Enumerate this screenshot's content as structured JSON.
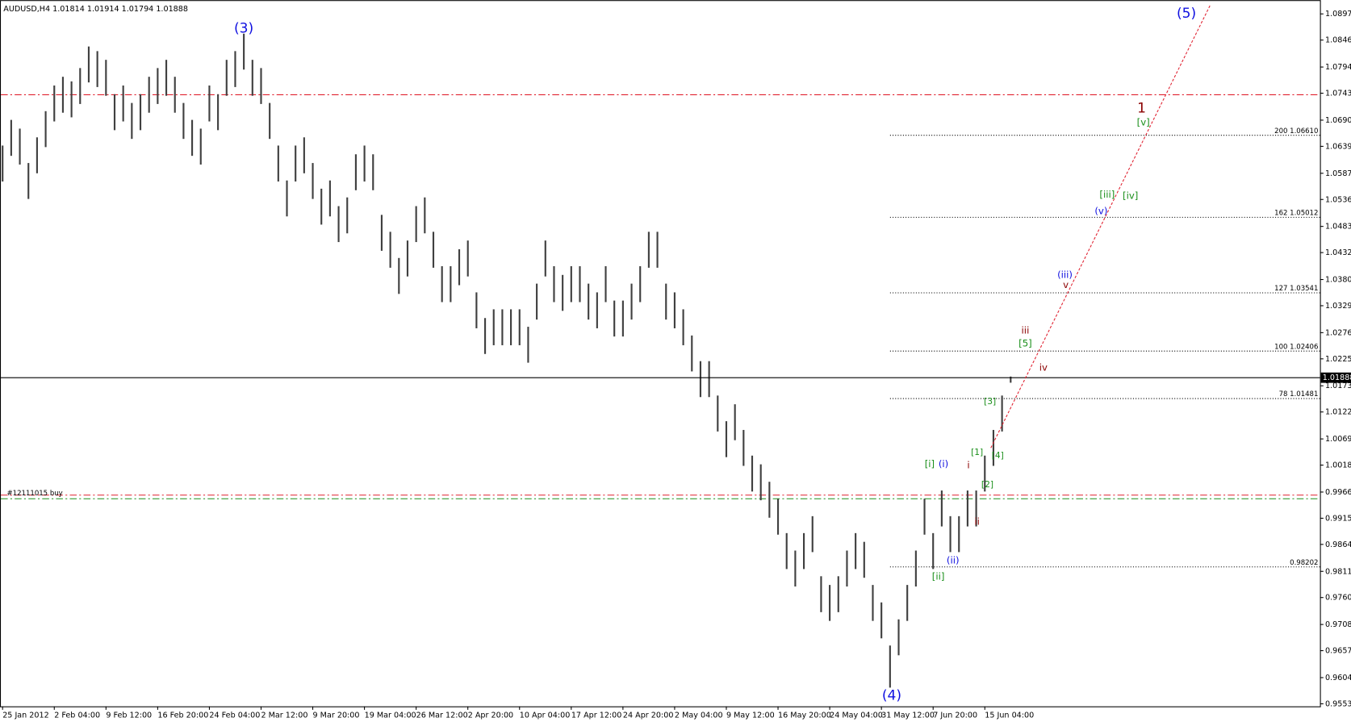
{
  "chart_data": {
    "type": "ohlc",
    "title": "AUDUSD,H4  1.01814 1.01914 1.01794 1.01888",
    "categories": [
      "25 Jan 2012",
      null,
      null,
      null,
      null,
      null,
      "2 Feb 04:00",
      null,
      null,
      null,
      null,
      null,
      "9 Feb 12:00",
      null,
      null,
      null,
      null,
      null,
      "16 Feb 20:00",
      null,
      null,
      null,
      null,
      null,
      "24 Feb 04:00",
      null,
      null,
      null,
      null,
      null,
      "2 Mar 12:00",
      null,
      null,
      null,
      null,
      null,
      "9 Mar 20:00",
      null,
      null,
      null,
      null,
      null,
      "19 Mar 04:00",
      null,
      null,
      null,
      null,
      null,
      "26 Mar 12:00",
      null,
      null,
      null,
      null,
      null,
      "2 Apr 20:00",
      null,
      null,
      null,
      null,
      null,
      "10 Apr 04:00",
      null,
      null,
      null,
      null,
      null,
      "17 Apr 12:00",
      null,
      null,
      null,
      null,
      null,
      "24 Apr 20:00",
      null,
      null,
      null,
      null,
      null,
      "2 May 04:00",
      null,
      null,
      null,
      null,
      null,
      "9 May 12:00",
      null,
      null,
      null,
      null,
      null,
      "16 May 20:00",
      null,
      null,
      null,
      null,
      null,
      "24 May 04:00",
      null,
      null,
      null,
      null,
      null,
      "31 May 12:00",
      null,
      null,
      null,
      null,
      null,
      "7 Jun 20:00",
      null,
      null,
      null,
      null,
      null,
      "15 Jun 04:00",
      null,
      null,
      null
    ],
    "high": [
      1.0641,
      1.0691,
      1.0674,
      1.0607,
      1.0657,
      1.0708,
      1.0758,
      1.0775,
      1.0766,
      1.0792,
      1.0834,
      1.0825,
      1.0808,
      1.0741,
      1.0758,
      1.0724,
      1.0741,
      1.0775,
      1.0792,
      1.0808,
      1.0775,
      1.0724,
      1.0691,
      1.0674,
      1.0758,
      1.0741,
      1.0808,
      1.0825,
      1.0859,
      1.0808,
      1.0792,
      1.0724,
      1.0641,
      1.0573,
      1.0641,
      1.0657,
      1.0607,
      1.0557,
      1.0573,
      1.0523,
      1.054,
      1.0624,
      1.0641,
      1.0624,
      1.0506,
      1.0473,
      1.0422,
      1.0456,
      1.0523,
      1.054,
      1.0473,
      1.0406,
      1.0406,
      1.0439,
      1.0456,
      1.0355,
      1.0305,
      1.0322,
      1.0322,
      1.0322,
      1.0322,
      1.0288,
      1.0372,
      1.0456,
      1.0406,
      1.0389,
      1.0406,
      1.0406,
      1.0372,
      1.0355,
      1.0406,
      1.0339,
      1.0339,
      1.0372,
      1.0406,
      1.0473,
      1.0473,
      1.0372,
      1.0355,
      1.0322,
      1.0271,
      1.0221,
      1.0221,
      1.0154,
      1.0104,
      1.0137,
      1.0087,
      1.0037,
      1.002,
      0.9986,
      0.9953,
      0.9886,
      0.9852,
      0.9886,
      0.9919,
      0.9802,
      0.9785,
      0.9802,
      0.9852,
      0.9886,
      0.9869,
      0.9785,
      0.9751,
      0.9667,
      0.9718,
      0.9785,
      0.9852,
      0.9953,
      0.9886,
      0.9969,
      0.9919,
      0.9919,
      0.9969,
      0.9969,
      1.0037,
      1.0087,
      1.0154,
      1.0191
    ],
    "low": [
      1.0571,
      1.0621,
      1.0604,
      1.0537,
      1.0587,
      1.0638,
      1.0688,
      1.0705,
      1.0696,
      1.0722,
      1.0764,
      1.0755,
      1.0738,
      1.0671,
      1.0688,
      1.0654,
      1.0671,
      1.0705,
      1.0722,
      1.0738,
      1.0705,
      1.0654,
      1.0621,
      1.0604,
      1.0688,
      1.0671,
      1.0738,
      1.0755,
      1.0789,
      1.0738,
      1.0722,
      1.0654,
      1.0571,
      1.0503,
      1.0571,
      1.0587,
      1.0537,
      1.0487,
      1.0503,
      1.0453,
      1.047,
      1.0554,
      1.0571,
      1.0554,
      1.0436,
      1.0403,
      1.0352,
      1.0386,
      1.0453,
      1.047,
      1.0403,
      1.0336,
      1.0336,
      1.0369,
      1.0386,
      1.0285,
      1.0235,
      1.0252,
      1.0252,
      1.0252,
      1.0252,
      1.0218,
      1.0302,
      1.0386,
      1.0336,
      1.0319,
      1.0336,
      1.0336,
      1.0302,
      1.0285,
      1.0336,
      1.0269,
      1.0269,
      1.0302,
      1.0336,
      1.0403,
      1.0403,
      1.0302,
      1.0285,
      1.0252,
      1.0201,
      1.0151,
      1.0151,
      1.0084,
      1.0034,
      1.0067,
      1.0017,
      0.9967,
      0.995,
      0.9916,
      0.9883,
      0.9816,
      0.9782,
      0.9816,
      0.9849,
      0.9732,
      0.9715,
      0.9732,
      0.9782,
      0.9816,
      0.9799,
      0.9715,
      0.9681,
      0.9585,
      0.9648,
      0.9715,
      0.9782,
      0.9883,
      0.9816,
      0.9899,
      0.9849,
      0.9849,
      0.9899,
      0.9899,
      0.9967,
      1.0017,
      1.0084,
      1.0179
    ],
    "bar_color": "#404040",
    "ylim": [
      0.95485,
      1.09243
    ],
    "yticks": [
      1.08975,
      1.08465,
      {
        "value": 1.0794,
        "label": "1.07940"
      },
      {
        "value": 1.0743,
        "label": "1.07430"
      },
      1.06905,
      1.06395,
      {
        "value": 1.0587,
        "label": "1.05870"
      },
      {
        "value": 1.0536,
        "label": "1.05360"
      },
      1.04835,
      1.04325,
      {
        "value": 1.038,
        "label": "1.03800"
      },
      {
        "value": 1.0329,
        "label": "1.03290"
      },
      1.02765,
      1.02255,
      {
        "value": 1.0173,
        "label": "1.01730"
      },
      {
        "value": 1.0122,
        "label": "1.01220"
      },
      1.00695,
      1.00185,
      {
        "value": 0.9966,
        "label": "0.99660"
      },
      {
        "value": 0.9915,
        "label": "0.99150"
      },
      {
        "value": 0.9864,
        "label": "0.98640"
      },
      0.98115,
      0.97605,
      {
        "value": 0.9708,
        "label": "0.97080"
      },
      {
        "value": 0.9657,
        "label": "0.96570"
      },
      0.96045,
      0.95535
    ],
    "current_price": 1.01888,
    "hlines": [
      {
        "value": 1.074,
        "color": "#e0202f",
        "style": "dashdot"
      },
      {
        "value": 0.996,
        "color": "#e0202f",
        "style": "dashdot",
        "label": "#12111015 buy"
      },
      {
        "value": 0.9953,
        "color": "#1a8f1a",
        "style": "dashdot"
      }
    ],
    "levels": [
      {
        "value": 1.0661,
        "label": "200 1.06610"
      },
      {
        "value": 1.05012,
        "label": "162 1.05012"
      },
      {
        "value": 1.03541,
        "label": "127 1.03541"
      },
      {
        "value": 1.02406,
        "label": "100 1.02406"
      },
      {
        "value": 1.01481,
        "label": "78 1.01481"
      },
      {
        "value": 0.98202,
        "label": "0.98202"
      }
    ],
    "levels_start": 103,
    "trendline": {
      "x": [
        114.7,
        140.2
      ],
      "y": [
        1.0052,
        1.0916
      ],
      "color": "#e0202f"
    },
    "annotations": [
      {
        "text": "(3)",
        "x": 28,
        "y": 1.0869,
        "color": "#1010e0",
        "font_size": 16
      },
      {
        "text": "(5)",
        "x": 137.4,
        "y": 1.0898,
        "color": "#1010e0",
        "font_size": 16
      },
      {
        "text": "(4)",
        "x": 103.2,
        "y": 0.9569,
        "color": "#1010e0",
        "font_size": 16
      },
      {
        "text": "1",
        "x": 132.2,
        "y": 1.0713,
        "color": "#8b0000",
        "font_size": 16
      },
      {
        "text": "[v]",
        "x": 132.4,
        "y": 1.0686,
        "color": "#1a8f1a",
        "font_size": 11
      },
      {
        "text": "[iii]",
        "x": 128.2,
        "y": 1.0545,
        "color": "#1a8f1a",
        "font_size": 11
      },
      {
        "text": "[iv]",
        "x": 130.9,
        "y": 1.0543,
        "color": "#1a8f1a",
        "font_size": 11
      },
      {
        "text": "(v)",
        "x": 127.5,
        "y": 1.0513,
        "color": "#1010e0",
        "font_size": 11
      },
      {
        "text": "(iii)",
        "x": 123.3,
        "y": 1.0389,
        "color": "#1010e0",
        "font_size": 11
      },
      {
        "text": "v",
        "x": 123.4,
        "y": 1.0369,
        "color": "#8b0000",
        "font_size": 11
      },
      {
        "text": "iii",
        "x": 118.7,
        "y": 1.028,
        "color": "#8b0000",
        "font_size": 11
      },
      {
        "text": "[5]",
        "x": 118.7,
        "y": 1.0255,
        "color": "#1a8f1a",
        "font_size": 11
      },
      {
        "text": "iv",
        "x": 120.8,
        "y": 1.0208,
        "color": "#8b0000",
        "font_size": 11
      },
      {
        "text": "[3]",
        "x": 114.6,
        "y": 1.0142,
        "color": "#1a8f1a",
        "font_size": 10
      },
      {
        "text": "[1]",
        "x": 113.1,
        "y": 1.0043,
        "color": "#1a8f1a",
        "font_size": 10
      },
      {
        "text": "[4]",
        "x": 115.5,
        "y": 1.0037,
        "color": "#1a8f1a",
        "font_size": 10
      },
      {
        "text": "i",
        "x": 112.1,
        "y": 1.0018,
        "color": "#8b0000",
        "font_size": 11
      },
      {
        "text": "[i]",
        "x": 107.6,
        "y": 1.002,
        "color": "#1a8f1a",
        "font_size": 11
      },
      {
        "text": "(i)",
        "x": 109.2,
        "y": 1.002,
        "color": "#1010e0",
        "font_size": 11
      },
      {
        "text": "[2]",
        "x": 114.3,
        "y": 0.998,
        "color": "#1a8f1a",
        "font_size": 10
      },
      {
        "text": "ii",
        "x": 113.1,
        "y": 0.9908,
        "color": "#8b0000",
        "font_size": 11
      },
      {
        "text": "(ii)",
        "x": 110.3,
        "y": 0.9832,
        "color": "#1010e0",
        "font_size": 11
      },
      {
        "text": "[ii]",
        "x": 108.6,
        "y": 0.9801,
        "color": "#1a8f1a",
        "font_size": 11
      }
    ]
  }
}
